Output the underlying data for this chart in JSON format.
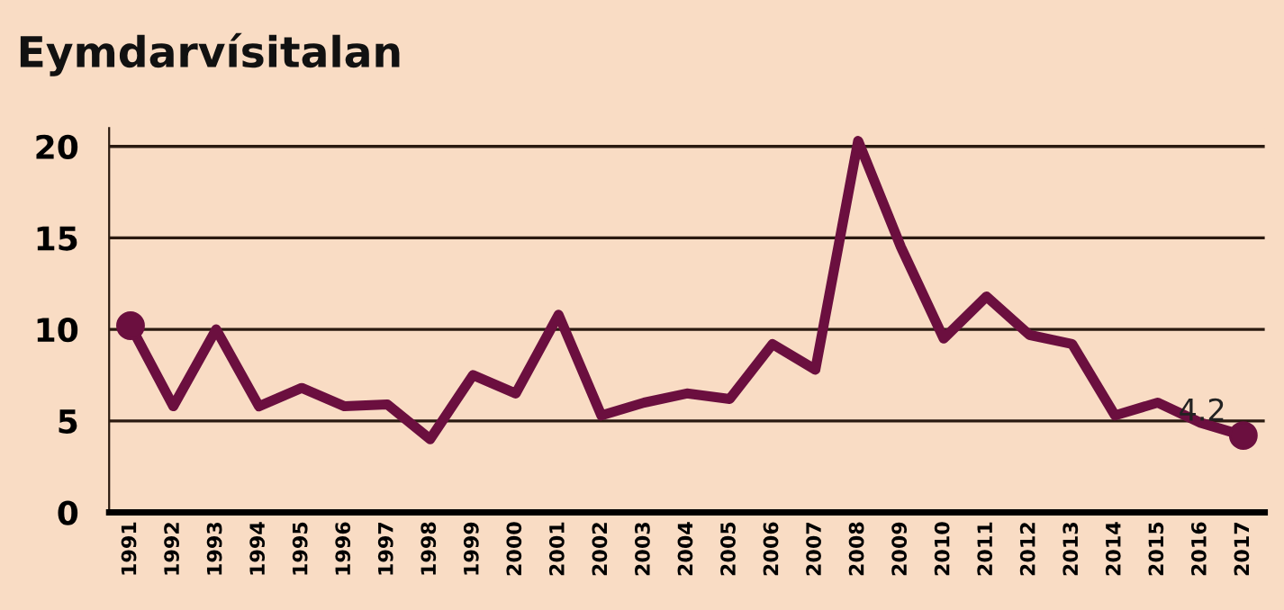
{
  "chart_data": {
    "type": "line",
    "title": "Eymdarvísitalan",
    "categories": [
      "1991",
      "1992",
      "1993",
      "1994",
      "1995",
      "1996",
      "1997",
      "1998",
      "1999",
      "2000",
      "2001",
      "2002",
      "2003",
      "2004",
      "2005",
      "2006",
      "2007",
      "2008",
      "2009",
      "2010",
      "2011",
      "2012",
      "2013",
      "2014",
      "2015",
      "2016",
      "2017"
    ],
    "series": [
      {
        "color": "#6b0f3f",
        "values": [
          10.2,
          5.8,
          10.0,
          5.8,
          6.8,
          5.8,
          5.9,
          4.0,
          7.5,
          6.5,
          10.8,
          5.3,
          6.0,
          6.5,
          6.2,
          9.2,
          7.8,
          20.3,
          14.5,
          9.5,
          11.8,
          9.7,
          9.2,
          5.3,
          6.0,
          4.9,
          4.2
        ]
      },
      {
        "type": "scatter",
        "color": "#6b0f3f",
        "marker": "circle",
        "values": [
          10.2,
          null,
          null,
          null,
          null,
          null,
          null,
          null,
          null,
          null,
          null,
          null,
          null,
          null,
          null,
          null,
          null,
          null,
          null,
          null,
          null,
          null,
          null,
          null,
          null,
          null,
          4.2
        ]
      }
    ],
    "annotations": [
      {
        "text": "4.2",
        "x": "2017",
        "y": 4.2
      }
    ],
    "ylim": [
      0,
      21
    ],
    "yticks": [
      0,
      5,
      10,
      15,
      20
    ],
    "grid": "y",
    "legend": false,
    "line_style": "solid"
  }
}
